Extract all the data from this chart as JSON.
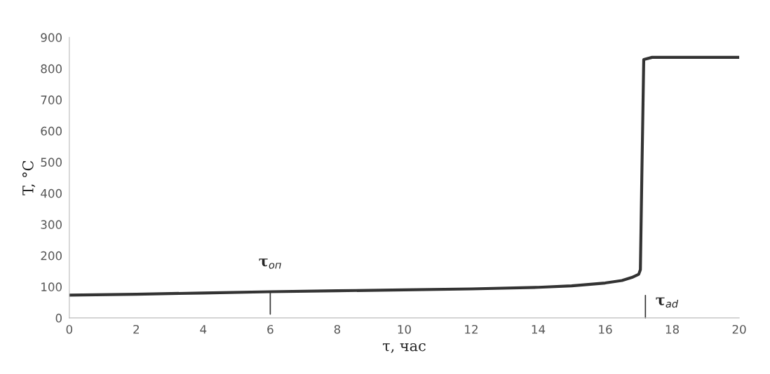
{
  "chart_data": {
    "type": "line",
    "xlabel": "τ, час",
    "ylabel": "T, °C",
    "x": [
      0,
      2,
      4,
      6,
      8,
      10,
      12,
      14,
      15,
      16,
      16.5,
      16.8,
      17.0,
      17.05,
      17.1,
      17.15,
      17.4,
      18,
      19,
      20
    ],
    "series": [
      {
        "color": "#333333",
        "values": [
          73,
          76,
          80,
          84,
          87,
          90,
          93,
          98,
          103,
          112,
          120,
          130,
          140,
          155,
          500,
          829,
          836,
          836,
          836,
          836
        ]
      }
    ],
    "xlim": [
      0,
      20
    ],
    "xticks": [
      0,
      2,
      4,
      6,
      8,
      10,
      12,
      14,
      16,
      18,
      20
    ],
    "ylim": [
      0,
      900
    ],
    "yticks": [
      0,
      100,
      200,
      300,
      400,
      500,
      600,
      700,
      800,
      900
    ],
    "grid": false,
    "marker": "none",
    "line_style": "solid",
    "annotations": [
      {
        "text": "τ$_{оп}$",
        "x": 6,
        "y": 84
      },
      "τ$_{ad}$"
    ]
  }
}
